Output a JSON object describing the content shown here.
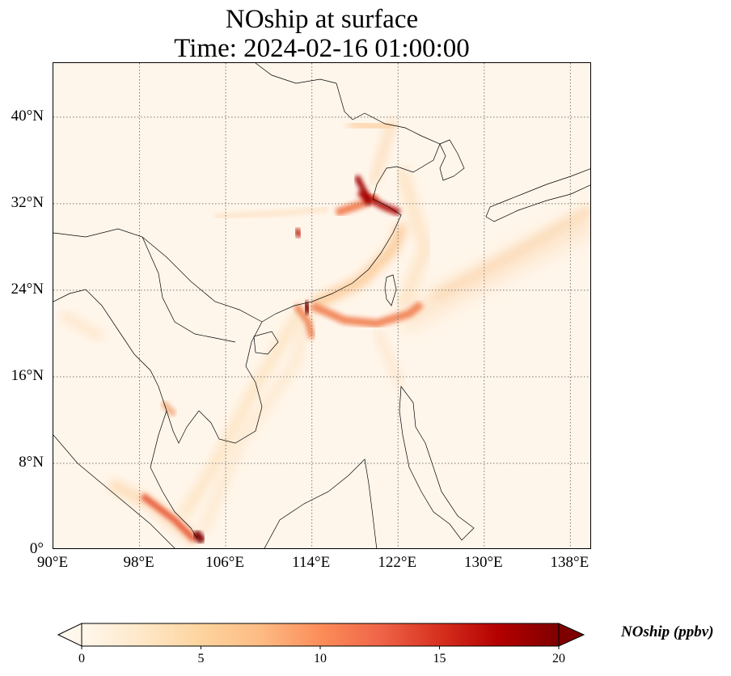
{
  "title": {
    "line1": "NOship at surface",
    "line2": "Time: 2024-02-16 01:00:00"
  },
  "map": {
    "lon_range": [
      90,
      140
    ],
    "lat_range": [
      0,
      45
    ],
    "lat_ticks": [
      {
        "value": 0,
        "label": "0°"
      },
      {
        "value": 8,
        "label": "8°N"
      },
      {
        "value": 16,
        "label": "16°N"
      },
      {
        "value": 24,
        "label": "24°N"
      },
      {
        "value": 32,
        "label": "32°N"
      },
      {
        "value": 40,
        "label": "40°N"
      }
    ],
    "lon_ticks": [
      {
        "value": 90,
        "label": "90°E"
      },
      {
        "value": 98,
        "label": "98°E"
      },
      {
        "value": 106,
        "label": "106°E"
      },
      {
        "value": 114,
        "label": "114°E"
      },
      {
        "value": 122,
        "label": "122°E"
      },
      {
        "value": 130,
        "label": "130°E"
      },
      {
        "value": 138,
        "label": "138°E"
      }
    ],
    "gridlines": "dotted",
    "background_color": "#fff6eb"
  },
  "colorbar": {
    "label": "NOship (ppbv)",
    "range": [
      0,
      20
    ],
    "extend": "both",
    "ticks": [
      {
        "value": 0,
        "label": "0"
      },
      {
        "value": 5,
        "label": "5"
      },
      {
        "value": 10,
        "label": "10"
      },
      {
        "value": 15,
        "label": "15"
      },
      {
        "value": 20,
        "label": "20"
      }
    ],
    "colormap": [
      "#fff7ec",
      "#fee8c8",
      "#fdd49e",
      "#fdbb84",
      "#fc8d59",
      "#ef6548",
      "#d7301f",
      "#b30000",
      "#7f0000"
    ]
  }
}
